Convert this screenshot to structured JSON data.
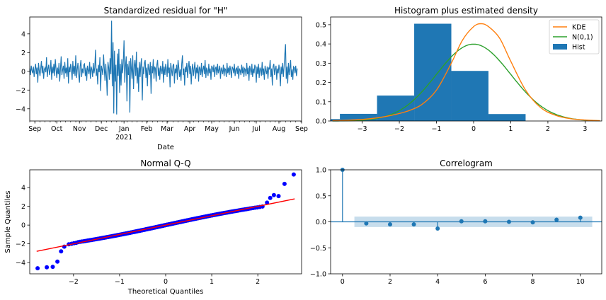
{
  "colors": {
    "residual": "#1f77b4",
    "hist": "#1f77b4",
    "kde": "#ff7f0e",
    "normal": "#2ca02c",
    "qq_points": "#0000ff",
    "qq_line": "#ff0000",
    "correlogram": "#1f77b4",
    "conf_band": "#1f77b4"
  },
  "chart_data": [
    {
      "type": "line",
      "title": "Standardized residual for \"H\"",
      "xlabel": "Date",
      "ylabel": "",
      "x_range": [
        "2020-08-25",
        "2021-09-01"
      ],
      "ylim": [
        -5.3,
        5.8
      ],
      "y_ticks": [
        -4,
        -2,
        0,
        2,
        4
      ],
      "x_ticks": [
        {
          "date": "2020-09-01",
          "label": "Sep"
        },
        {
          "date": "2020-10-01",
          "label": "Oct"
        },
        {
          "date": "2020-11-01",
          "label": "Nov"
        },
        {
          "date": "2020-12-01",
          "label": "Dec"
        },
        {
          "date": "2021-01-01",
          "label": "Jan",
          "sublabel": "2021"
        },
        {
          "date": "2021-02-01",
          "label": "Feb"
        },
        {
          "date": "2021-03-01",
          "label": "Mar"
        },
        {
          "date": "2021-04-01",
          "label": "Apr"
        },
        {
          "date": "2021-05-01",
          "label": "May"
        },
        {
          "date": "2021-06-01",
          "label": "Jun"
        },
        {
          "date": "2021-07-01",
          "label": "Jul"
        },
        {
          "date": "2021-08-01",
          "label": "Aug"
        },
        {
          "date": "2021-09-01",
          "label": "Sep"
        }
      ],
      "series": [
        {
          "start_date": "2020-08-25",
          "step_days": 1,
          "values": [
            0.3,
            -0.4,
            0.6,
            0.1,
            -0.2,
            0.5,
            -0.6,
            0.2,
            0.8,
            -0.3,
            0.4,
            -1.2,
            0.9,
            0.1,
            -0.5,
            0.3,
            1.1,
            -0.2,
            0.6,
            -0.8,
            0.2,
            0.4,
            -0.1,
            1.5,
            -0.6,
            0.3,
            0.7,
            -0.4,
            0.1,
            1.2,
            -0.9,
            0.5,
            -0.2,
            0.8,
            -0.5,
            1.3,
            0.2,
            -0.7,
            0.4,
            -0.3,
            0.9,
            -1.1,
            0.3,
            1.6,
            -0.4,
            0.2,
            0.6,
            -0.8,
            1.0,
            -0.2,
            0.4,
            -0.6,
            1.4,
            -1.3,
            0.5,
            -0.1,
            0.8,
            0.3,
            -0.9,
            1.1,
            -0.3,
            0.6,
            -0.5,
            1.7,
            -0.7,
            0.2,
            0.9,
            -0.4,
            -1.2,
            0.5,
            1.2,
            -0.6,
            0.3,
            -0.2,
            0.7,
            0.8,
            -0.5,
            0.4,
            -1.0,
            0.6,
            0.1,
            -0.3,
            1.0,
            -0.8,
            0.5,
            0.2,
            -0.6,
            0.9,
            -0.2,
            0.4,
            2.3,
            -0.5,
            0.3,
            -1.4,
            0.7,
            -0.1,
            1.5,
            -2.1,
            0.6,
            0.2,
            -0.4,
            1.8,
            0.3,
            -1.0,
            0.8,
            -0.6,
            -2.6,
            1.0,
            0.4,
            -0.9,
            1.4,
            -0.3,
            5.4,
            -1.6,
            3.1,
            -4.5,
            2.2,
            -1.1,
            0.7,
            -4.6,
            1.9,
            -0.5,
            2.4,
            -2.3,
            0.8,
            -1.5,
            1.3,
            -0.2,
            0.9,
            3.3,
            -1.2,
            0.5,
            1.6,
            -3.2,
            0.8,
            -0.4,
            1.1,
            -4.4,
            1.4,
            0.3,
            -0.8,
            1.7,
            -1.9,
            0.6,
            1.2,
            -0.5,
            2.1,
            -1.3,
            0.4,
            -2.2,
            1.0,
            -0.6,
            0.7,
            1.4,
            -3.1,
            0.5,
            -0.3,
            0.9,
            1.2,
            -0.7,
            0.4,
            -1.6,
            0.8,
            0.2,
            -0.4,
            1.0,
            -2.4,
            0.6,
            -0.2,
            1.3,
            -0.8,
            0.5,
            0.3,
            -1.1,
            0.7,
            1.2,
            -0.5,
            0.4,
            -0.9,
            0.6,
            0.2,
            -0.3,
            1.1,
            -1.2,
            0.5,
            -0.4,
            0.8,
            0.3,
            -0.6,
            1.3,
            -0.2,
            0.4,
            -1.7,
            0.9,
            0.1,
            -0.5,
            0.6,
            0.8,
            -1.3,
            0.3,
            -0.2,
            0.7,
            -0.9,
            1.2,
            0.4,
            -0.6,
            0.2,
            -1.0,
            0.8,
            1.7,
            -0.4,
            0.3,
            -1.5,
            0.5,
            -0.1,
            0.9,
            -0.7,
            0.4,
            1.1,
            -0.3,
            0.6,
            -1.4,
            0.2,
            0.8,
            -0.5,
            0.3,
            1.0,
            -0.8,
            0.4,
            -0.2,
            0.7,
            -1.1,
            0.5,
            0.3,
            -0.4,
            0.9,
            -0.6,
            0.2,
            0.6,
            -0.3,
            1.2,
            -0.7,
            0.4,
            0.1,
            -0.5,
            0.8,
            -0.2,
            0.3,
            -0.9,
            0.6,
            0.4,
            -0.1,
            0.7,
            -0.6,
            0.3,
            0.5,
            -0.4,
            0.8,
            -0.2,
            0.2,
            0.6,
            -0.8,
            0.4,
            0.1,
            -0.3,
            0.7,
            -0.5,
            0.3,
            0.2,
            -0.6,
            0.9,
            -0.2,
            0.4,
            -0.4,
            0.6,
            0.1,
            -0.7,
            0.5,
            0.3,
            -0.2,
            0.8,
            -0.5,
            0.2,
            0.4,
            -0.3,
            0.6,
            -0.8,
            0.3,
            0.1,
            -0.4,
            0.7,
            -0.2,
            0.5,
            -0.6,
            0.3,
            0.2,
            -0.5,
            0.9,
            -0.3,
            0.4,
            -1.0,
            0.6,
            0.2,
            -0.4,
            0.8,
            -0.6,
            0.3,
            -0.2,
            0.7,
            0.4,
            -1.2,
            0.5,
            -0.3,
            0.8,
            -0.7,
            0.4,
            0.2,
            -0.5,
            1.0,
            -0.4,
            0.3,
            -0.9,
            0.6,
            0.1,
            -0.3,
            0.5,
            -0.8,
            0.4,
            0.2,
            1.2,
            -0.6,
            0.3,
            -1.5,
            0.5,
            0.8,
            -0.4,
            0.2,
            0.6,
            -0.9,
            0.3,
            -0.2,
            0.7,
            0.1,
            -1.6,
            0.5,
            -0.3,
            0.9,
            -0.6,
            0.4,
            1.8,
            2.9,
            -0.8,
            0.5,
            -1.3,
            0.9,
            -0.4,
            0.3,
            1.2,
            -0.6,
            0.2,
            -0.9,
            0.5,
            0.4,
            -0.2,
            0.6,
            -0.5,
            0.3
          ]
        }
      ]
    },
    {
      "type": "bar",
      "title": "Histogram plus estimated density",
      "xlabel": "",
      "ylabel": "",
      "xlim": [
        -3.85,
        3.45
      ],
      "ylim": [
        0,
        0.54
      ],
      "x_ticks": [
        -3,
        -2,
        -1,
        0,
        1,
        2,
        3
      ],
      "y_ticks": [
        0.0,
        0.1,
        0.2,
        0.3,
        0.4,
        0.5
      ],
      "legend": {
        "placement": "top-right",
        "entries": [
          "KDE",
          "N(0,1)",
          "Hist"
        ]
      },
      "bin_edges": [
        -3.85,
        -3.6,
        -2.6,
        -1.6,
        -0.6,
        0.4,
        1.4,
        2.4
      ],
      "bin_heights": [
        0.01,
        0.037,
        0.132,
        0.505,
        0.26,
        0.036,
        0.0
      ],
      "kde": {
        "name": "KDE",
        "x": [
          -3.8,
          -3.4,
          -3.0,
          -2.6,
          -2.2,
          -1.8,
          -1.4,
          -1.0,
          -0.6,
          -0.3,
          0.0,
          0.2,
          0.4,
          0.7,
          1.0,
          1.4,
          1.8,
          2.2,
          2.6,
          3.0,
          3.4
        ],
        "y": [
          0.002,
          0.004,
          0.008,
          0.016,
          0.03,
          0.05,
          0.085,
          0.16,
          0.3,
          0.42,
          0.49,
          0.505,
          0.49,
          0.43,
          0.31,
          0.16,
          0.07,
          0.03,
          0.012,
          0.005,
          0.002
        ]
      },
      "normal": {
        "name": "N(0,1)",
        "mean": 0,
        "sd": 1
      }
    },
    {
      "type": "scatter",
      "title": "Normal Q-Q",
      "xlabel": "Theoretical Quantiles",
      "ylabel": "Sample Quantiles",
      "xlim": [
        -2.95,
        2.95
      ],
      "ylim": [
        -5.2,
        5.9
      ],
      "x_ticks": [
        -2,
        -1,
        0,
        1,
        2
      ],
      "y_ticks": [
        -4,
        -2,
        0,
        2,
        4
      ],
      "reference_line": {
        "slope": 1,
        "intercept": 0
      },
      "sample_size": 365,
      "outliers": [
        {
          "x": -2.78,
          "y": -4.6
        },
        {
          "x": -2.58,
          "y": -4.5
        },
        {
          "x": -2.45,
          "y": -4.45
        },
        {
          "x": -2.35,
          "y": -3.9
        },
        {
          "x": -2.27,
          "y": -2.8
        },
        {
          "x": -2.2,
          "y": -2.3
        },
        {
          "x": 2.2,
          "y": 2.4
        },
        {
          "x": 2.27,
          "y": 2.9
        },
        {
          "x": 2.35,
          "y": 3.2
        },
        {
          "x": 2.45,
          "y": 3.1
        },
        {
          "x": 2.58,
          "y": 4.4
        },
        {
          "x": 2.78,
          "y": 5.4
        }
      ]
    },
    {
      "type": "scatter",
      "title": "Correlogram",
      "xlabel": "",
      "ylabel": "",
      "xlim": [
        -0.5,
        10.9
      ],
      "ylim": [
        -1.0,
        1.0
      ],
      "x_ticks": [
        0,
        2,
        4,
        6,
        8,
        10
      ],
      "y_ticks": [
        -1.0,
        -0.5,
        0.0,
        0.5,
        1.0
      ],
      "lags": [
        0,
        1,
        2,
        3,
        4,
        5,
        6,
        7,
        8,
        9,
        10
      ],
      "acf": [
        1.0,
        -0.03,
        -0.05,
        -0.05,
        -0.13,
        0.01,
        0.01,
        0.0,
        -0.01,
        0.04,
        0.08
      ],
      "confidence_band": {
        "from_lag": 0.5,
        "to_lag": 10.5,
        "limit": 0.1
      }
    }
  ]
}
